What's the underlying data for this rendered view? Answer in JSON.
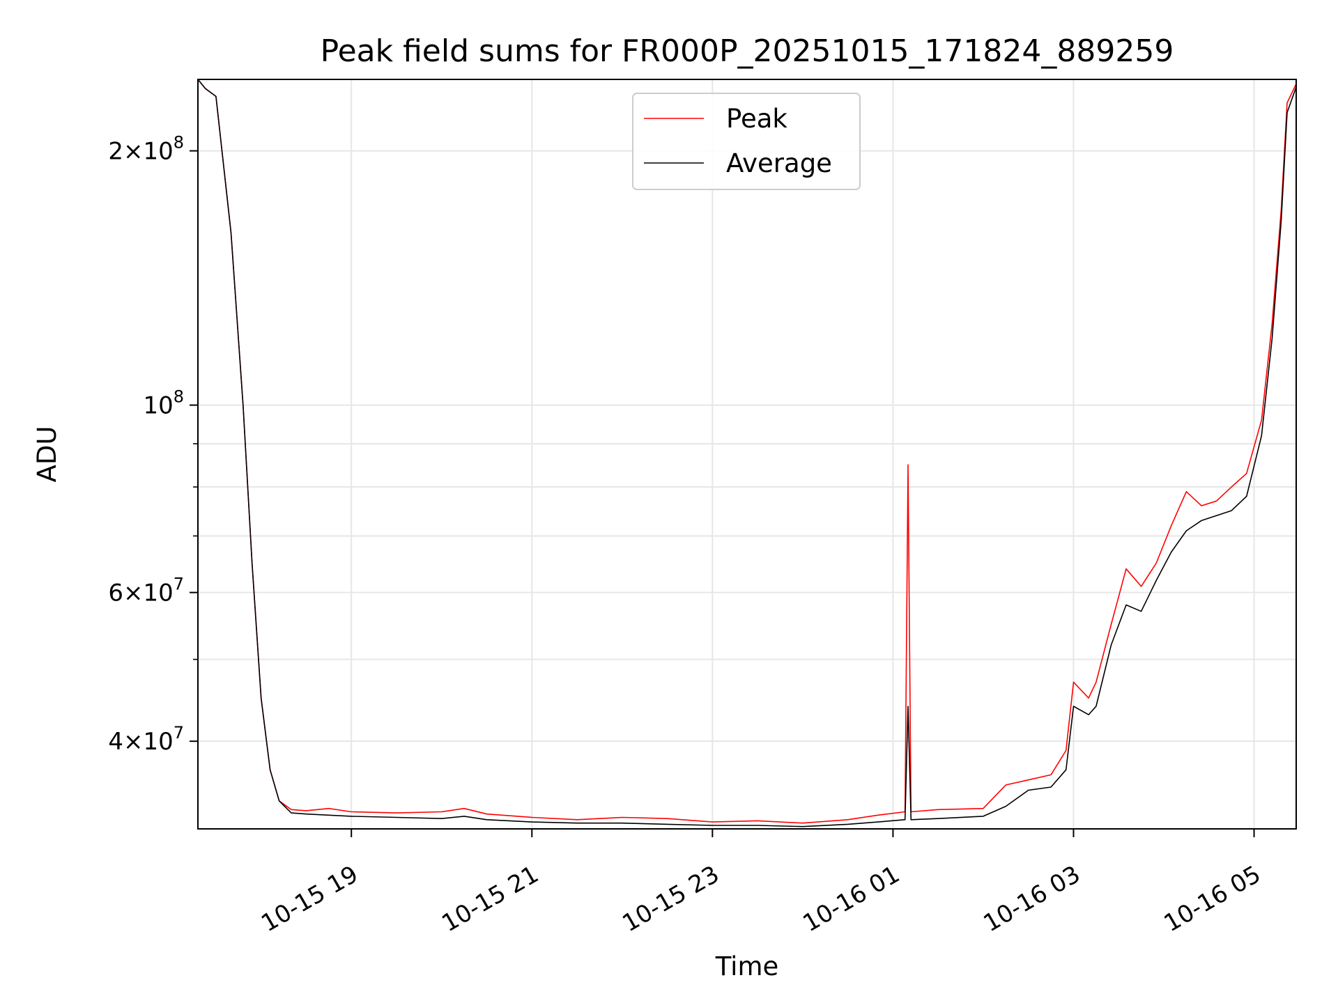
{
  "chart_data": {
    "type": "line",
    "title": "Peak field sums for FR000P_20251015_171824_889259",
    "xlabel": "Time",
    "ylabel": "ADU",
    "y_scale": "log",
    "ylim": [
      31500000,
      243000000
    ],
    "xlim": [
      "2025-10-15 17:18",
      "2025-10-16 05:28"
    ],
    "grid": true,
    "legend_position": "top-center",
    "x_ticks": [
      {
        "value": "2025-10-15 19:00",
        "label": "10-15 19"
      },
      {
        "value": "2025-10-15 21:00",
        "label": "10-15 21"
      },
      {
        "value": "2025-10-15 23:00",
        "label": "10-15 23"
      },
      {
        "value": "2025-10-16 01:00",
        "label": "10-16 01"
      },
      {
        "value": "2025-10-16 03:00",
        "label": "10-16 03"
      },
      {
        "value": "2025-10-16 05:00",
        "label": "10-16 05"
      }
    ],
    "y_ticks": [
      {
        "value": 40000000,
        "base": "4",
        "exp": "7"
      },
      {
        "value": 60000000,
        "base": "6",
        "exp": "7"
      },
      {
        "value": 100000000,
        "base": "",
        "exp": "8"
      },
      {
        "value": 200000000,
        "base": "2",
        "exp": "8"
      }
    ],
    "y_minor_ticks": [
      50000000,
      70000000,
      80000000,
      90000000
    ],
    "x": [
      "2025-10-15 17:18",
      "2025-10-15 17:23",
      "2025-10-15 17:30",
      "2025-10-15 17:40",
      "2025-10-15 17:48",
      "2025-10-15 17:54",
      "2025-10-15 18:00",
      "2025-10-15 18:06",
      "2025-10-15 18:12",
      "2025-10-15 18:20",
      "2025-10-15 18:30",
      "2025-10-15 18:45",
      "2025-10-15 19:00",
      "2025-10-15 19:30",
      "2025-10-15 20:00",
      "2025-10-15 20:15",
      "2025-10-15 20:30",
      "2025-10-15 21:00",
      "2025-10-15 21:30",
      "2025-10-15 22:00",
      "2025-10-15 22:30",
      "2025-10-15 23:00",
      "2025-10-15 23:30",
      "2025-10-16 00:00",
      "2025-10-16 00:30",
      "2025-10-16 00:50",
      "2025-10-16 01:08",
      "2025-10-16 01:10",
      "2025-10-16 01:12",
      "2025-10-16 01:30",
      "2025-10-16 02:00",
      "2025-10-16 02:15",
      "2025-10-16 02:30",
      "2025-10-16 02:45",
      "2025-10-16 02:55",
      "2025-10-16 03:00",
      "2025-10-16 03:10",
      "2025-10-16 03:15",
      "2025-10-16 03:25",
      "2025-10-16 03:35",
      "2025-10-16 03:45",
      "2025-10-16 03:55",
      "2025-10-16 04:05",
      "2025-10-16 04:15",
      "2025-10-16 04:25",
      "2025-10-16 04:35",
      "2025-10-16 04:45",
      "2025-10-16 04:55",
      "2025-10-16 05:05",
      "2025-10-16 05:12",
      "2025-10-16 05:18",
      "2025-10-16 05:22",
      "2025-10-16 05:28"
    ],
    "series": [
      {
        "name": "Peak",
        "color": "#ff0000",
        "values": [
          243000000,
          237000000,
          232000000,
          160000000,
          100000000,
          65000000,
          45000000,
          37000000,
          34000000,
          33200000,
          33100000,
          33300000,
          33000000,
          32900000,
          33000000,
          33300000,
          32800000,
          32500000,
          32300000,
          32500000,
          32400000,
          32100000,
          32200000,
          32000000,
          32300000,
          32700000,
          33000000,
          85000000,
          33000000,
          33200000,
          33300000,
          35500000,
          36000000,
          36500000,
          39000000,
          47000000,
          45000000,
          47000000,
          55000000,
          64000000,
          61000000,
          65000000,
          72000000,
          79000000,
          76000000,
          77000000,
          80000000,
          83000000,
          96000000,
          125000000,
          170000000,
          228000000,
          240000000
        ]
      },
      {
        "name": "Average",
        "color": "#000000",
        "values": [
          243000000,
          237000000,
          232000000,
          160000000,
          100000000,
          65000000,
          45000000,
          37000000,
          34000000,
          32900000,
          32800000,
          32700000,
          32600000,
          32500000,
          32400000,
          32600000,
          32300000,
          32100000,
          32000000,
          32000000,
          31900000,
          31800000,
          31800000,
          31700000,
          31900000,
          32100000,
          32300000,
          44000000,
          32300000,
          32400000,
          32600000,
          33500000,
          35000000,
          35300000,
          37000000,
          44000000,
          43000000,
          44000000,
          52000000,
          58000000,
          57000000,
          62000000,
          67000000,
          71000000,
          73000000,
          74000000,
          75000000,
          78000000,
          92000000,
          120000000,
          165000000,
          222000000,
          238000000
        ]
      }
    ]
  }
}
